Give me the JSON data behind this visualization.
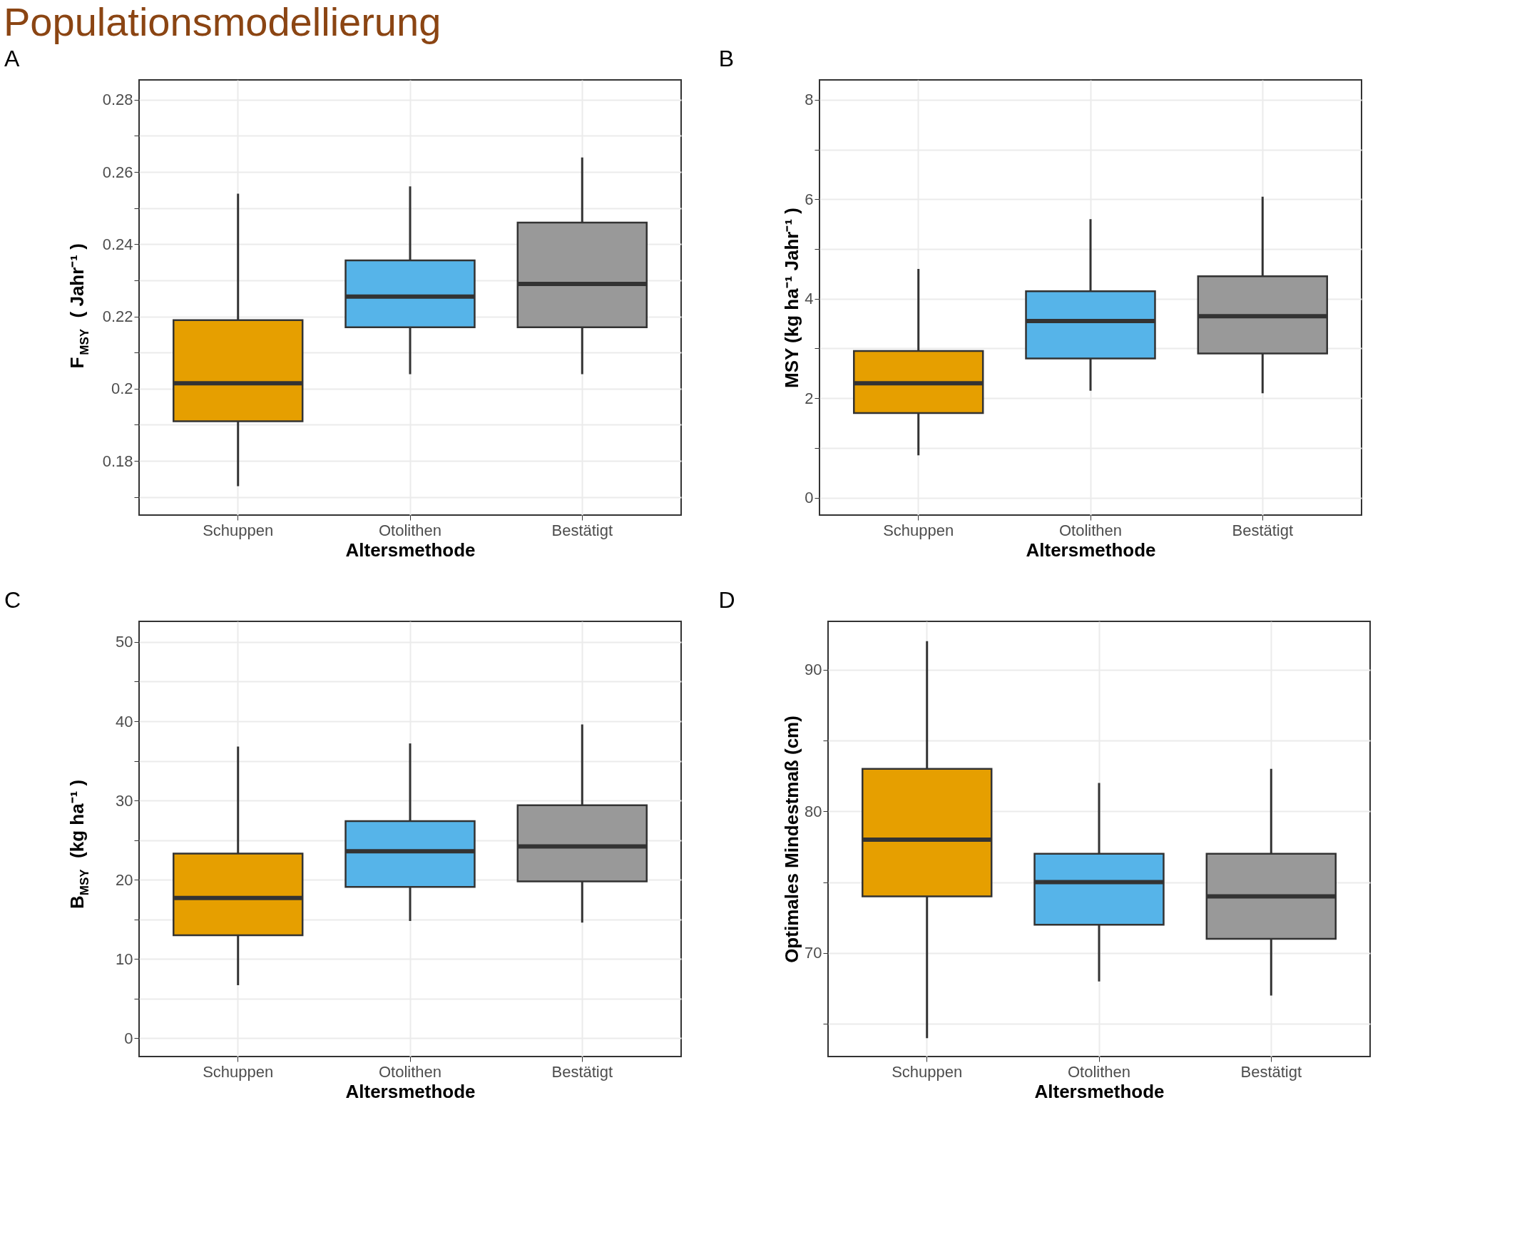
{
  "chart_data": [
    {
      "type": "box",
      "title": "A",
      "annotations": [
        "Populationsmodellierung"
      ],
      "xlabel": "Altersmethode",
      "ylabel": "F$_{MSY}$  ( Jahr⁻¹ )",
      "categories": [
        "Schuppen",
        "Otolithen",
        "Bestätigt"
      ],
      "colors": [
        "#e69f00",
        "#56b4e9",
        "#999999"
      ],
      "boxes": [
        {
          "low": 0.173,
          "q1": 0.191,
          "median": 0.2015,
          "q3": 0.219,
          "high": 0.254
        },
        {
          "low": 0.204,
          "q1": 0.217,
          "median": 0.2255,
          "q3": 0.2355,
          "high": 0.256
        },
        {
          "low": 0.204,
          "q1": 0.217,
          "median": 0.229,
          "q3": 0.246,
          "high": 0.264
        }
      ],
      "ylim": [
        0.165,
        0.2855
      ],
      "yticks": [
        {
          "value": 0.17,
          "label": null
        },
        0.18,
        {
          "value": 0.19,
          "label": null
        },
        0.2,
        {
          "value": 0.21,
          "label": null
        },
        0.22,
        {
          "value": 0.23,
          "label": null
        },
        0.24,
        {
          "value": 0.25,
          "label": null
        },
        0.26,
        {
          "value": 0.27,
          "label": null
        },
        0.28
      ],
      "grid": true,
      "legend": false
    },
    {
      "type": "box",
      "title": "B",
      "xlabel": "Altersmethode",
      "ylabel": "MSY (kg  ha⁻¹  Jahr⁻¹ )",
      "categories": [
        "Schuppen",
        "Otolithen",
        "Bestätigt"
      ],
      "colors": [
        "#e69f00",
        "#56b4e9",
        "#999999"
      ],
      "boxes": [
        {
          "low": 0.85,
          "q1": 1.7,
          "median": 2.3,
          "q3": 2.95,
          "high": 4.6
        },
        {
          "low": 2.15,
          "q1": 2.8,
          "median": 3.55,
          "q3": 4.15,
          "high": 5.6
        },
        {
          "low": 2.1,
          "q1": 2.9,
          "median": 3.65,
          "q3": 4.45,
          "high": 6.05
        }
      ],
      "ylim": [
        -0.35,
        8.4
      ],
      "yticks": [
        0,
        {
          "value": 1,
          "label": null
        },
        2,
        {
          "value": 3,
          "label": null
        },
        4,
        {
          "value": 5,
          "label": null
        },
        6,
        {
          "value": 7,
          "label": null
        },
        8
      ],
      "grid": true,
      "legend": false
    },
    {
      "type": "box",
      "title": "C",
      "xlabel": "Altersmethode",
      "ylabel": "B$_{MSY}$  (kg ha⁻¹ )",
      "categories": [
        "Schuppen",
        "Otolithen",
        "Bestätigt"
      ],
      "colors": [
        "#e69f00",
        "#56b4e9",
        "#999999"
      ],
      "boxes": [
        {
          "low": 6.7,
          "q1": 13,
          "median": 17.7,
          "q3": 23.3,
          "high": 36.8
        },
        {
          "low": 14.8,
          "q1": 19.1,
          "median": 23.6,
          "q3": 27.4,
          "high": 37.2
        },
        {
          "low": 14.6,
          "q1": 19.8,
          "median": 24.2,
          "q3": 29.4,
          "high": 39.6
        }
      ],
      "ylim": [
        -2.3,
        52.6
      ],
      "yticks": [
        0,
        {
          "value": 5,
          "label": null
        },
        10,
        {
          "value": 15,
          "label": null
        },
        20,
        {
          "value": 25,
          "label": null
        },
        30,
        {
          "value": 35,
          "label": null
        },
        40,
        {
          "value": 45,
          "label": null
        },
        50
      ],
      "grid": true,
      "legend": false
    },
    {
      "type": "box",
      "title": "D",
      "xlabel": "Altersmethode",
      "ylabel": "Optimales Mindestmaß (cm)",
      "categories": [
        "Schuppen",
        "Otolithen",
        "Bestätigt"
      ],
      "colors": [
        "#e69f00",
        "#56b4e9",
        "#999999"
      ],
      "boxes": [
        {
          "low": 64,
          "q1": 74,
          "median": 78,
          "q3": 83,
          "high": 92
        },
        {
          "low": 68,
          "q1": 72,
          "median": 75,
          "q3": 77,
          "high": 82
        },
        {
          "low": 67,
          "q1": 71,
          "median": 74,
          "q3": 77,
          "high": 83
        }
      ],
      "ylim": [
        62.7,
        93.4
      ],
      "yticks": [
        {
          "value": 65,
          "label": null
        },
        70,
        {
          "value": 75,
          "label": null
        },
        80,
        {
          "value": 85,
          "label": null
        },
        90
      ],
      "grid": true,
      "legend": false
    }
  ]
}
